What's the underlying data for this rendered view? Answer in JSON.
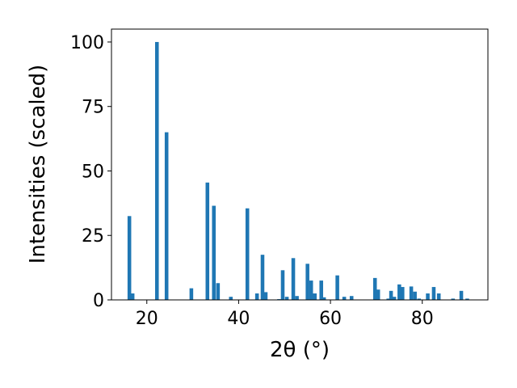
{
  "chart_data": {
    "type": "bar",
    "xlabel": "2θ (°)",
    "ylabel": "Intensities (scaled)",
    "xlim": [
      12.3,
      94.3
    ],
    "ylim": [
      0,
      105
    ],
    "xticks": [
      20,
      40,
      60,
      80
    ],
    "yticks": [
      0,
      25,
      50,
      75,
      100
    ],
    "bar_width": 0.8,
    "bar_color": "#1f77b4",
    "grid": false,
    "legend": "none",
    "x": [
      16.2,
      16.9,
      22.2,
      24.3,
      29.7,
      33.2,
      34.6,
      35.5,
      38.3,
      41.9,
      44.0,
      45.2,
      45.9,
      48.8,
      49.6,
      50.5,
      51.9,
      52.7,
      55.0,
      55.8,
      56.6,
      58.0,
      58.6,
      61.5,
      63.0,
      64.6,
      69.7,
      70.4,
      72.6,
      73.2,
      73.9,
      75.0,
      75.7,
      77.6,
      78.4,
      79.3,
      81.2,
      82.5,
      83.6,
      86.7,
      88.5,
      89.8
    ],
    "values": [
      32.5,
      2.5,
      100,
      65,
      4.5,
      45.5,
      36.5,
      6.5,
      1.2,
      35.5,
      2.5,
      17.5,
      3.0,
      0.3,
      11.5,
      1.2,
      16.2,
      1.5,
      14.0,
      7.5,
      2.5,
      7.5,
      1.0,
      9.5,
      1.2,
      1.5,
      8.5,
      4.0,
      0.5,
      3.5,
      1.2,
      6.0,
      5.0,
      5.2,
      3.2,
      0.5,
      2.5,
      5.0,
      2.5,
      0.5,
      3.5,
      0.5
    ]
  }
}
